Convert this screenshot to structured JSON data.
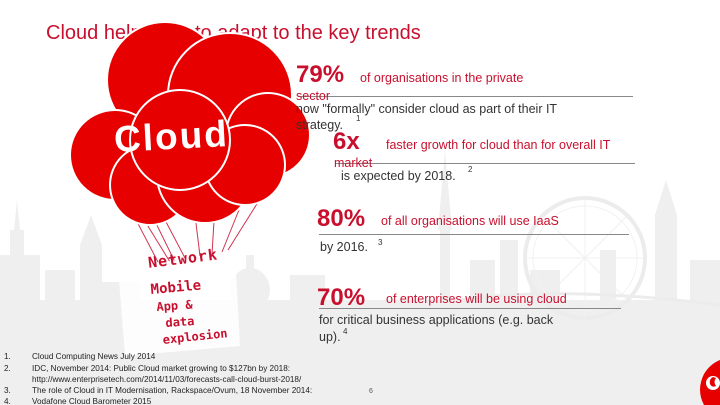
{
  "slide": {
    "title": "Cloud helps you to adapt to the key trends",
    "balloon_text": "Cloud",
    "basket_lines": [
      "Network",
      "Mobile",
      "App &",
      "data",
      "explosion"
    ],
    "stats": [
      {
        "figure": "79%",
        "line1": "of organisations in the private",
        "line2": "sector",
        "line3": "now \"formally\" consider cloud as part of their IT",
        "line4": "strategy.",
        "note": "1"
      },
      {
        "figure": "6x",
        "line1": "faster growth for cloud than for overall IT",
        "line2": "market",
        "line3": "is expected by 2018.",
        "note": "2"
      },
      {
        "figure": "80%",
        "line1": "of all organisations will use IaaS",
        "line2": "by 2016.",
        "note": "3"
      },
      {
        "figure": "70%",
        "line1": "of enterprises will be using cloud",
        "line2": "for critical business applications (e.g. back",
        "line3": "up).",
        "note": "4"
      }
    ],
    "footnotes": [
      {
        "num": "1.",
        "text": "Cloud Computing News July 2014"
      },
      {
        "num": "2.",
        "text": "IDC, November 2014: Public Cloud market growing to $127bn  by 2018:"
      },
      {
        "num": "",
        "text": "http://www.enterprisetech.com/2014/11/03/forecasts-call-cloud-burst-2018/"
      },
      {
        "num": "3.",
        "text": "The role of Cloud in IT Modernisation, Rackspace/Ovum, 18 November 2014:"
      },
      {
        "num": "4.",
        "text": "Vodafone Cloud Barometer 2015"
      }
    ],
    "page_number": "6"
  },
  "colors": {
    "brand_red": "#c8102e",
    "skyline": "#eeeeee",
    "text_dark": "#333333"
  },
  "icons": {
    "logo": "vodafone-speech-mark-icon"
  }
}
